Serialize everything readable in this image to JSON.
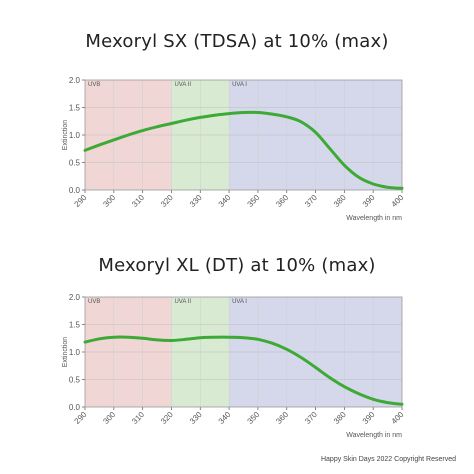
{
  "footer": "Happy Skin Days 2022 Copyright Reserved",
  "chart_data": [
    {
      "type": "line",
      "title": "Mexoryl SX (TDSA) at 10% (max)",
      "xlabel": "Wavelength in nm",
      "ylabel": "Extinction",
      "xlim": [
        290,
        400
      ],
      "ylim": [
        0,
        2.0
      ],
      "x_ticks": [
        "290",
        "300",
        "310",
        "320",
        "330",
        "340",
        "350",
        "360",
        "370",
        "380",
        "390",
        "400"
      ],
      "y_ticks": [
        "0.0",
        "0.5",
        "1.0",
        "1.5",
        "2.0"
      ],
      "grid": true,
      "bands": [
        {
          "label": "UVB",
          "from": 290,
          "to": 320,
          "color": "#f1d6d6"
        },
        {
          "label": "UVA II",
          "from": 320,
          "to": 340,
          "color": "#d9ead3"
        },
        {
          "label": "UVA I",
          "from": 340,
          "to": 400,
          "color": "#d5d7ea"
        }
      ],
      "line_color": "#3daa35",
      "series": [
        {
          "x": [
            290,
            295,
            300,
            305,
            310,
            315,
            320,
            325,
            330,
            335,
            340,
            345,
            350,
            355,
            360,
            365,
            370,
            375,
            380,
            385,
            390,
            395,
            400
          ],
          "values": [
            0.72,
            0.82,
            0.91,
            1.0,
            1.08,
            1.15,
            1.21,
            1.27,
            1.32,
            1.36,
            1.39,
            1.41,
            1.41,
            1.38,
            1.33,
            1.24,
            1.05,
            0.75,
            0.45,
            0.23,
            0.11,
            0.05,
            0.03
          ]
        }
      ]
    },
    {
      "type": "line",
      "title": "Mexoryl XL (DT) at 10% (max)",
      "xlabel": "Wavelength in nm",
      "ylabel": "Extinction",
      "xlim": [
        290,
        400
      ],
      "ylim": [
        0,
        2.0
      ],
      "x_ticks": [
        "290",
        "300",
        "310",
        "320",
        "330",
        "340",
        "350",
        "360",
        "370",
        "380",
        "390",
        "400"
      ],
      "y_ticks": [
        "0.0",
        "0.5",
        "1.0",
        "1.5",
        "2.0"
      ],
      "grid": true,
      "bands": [
        {
          "label": "UVB",
          "from": 290,
          "to": 320,
          "color": "#f1d6d6"
        },
        {
          "label": "UVA II",
          "from": 320,
          "to": 340,
          "color": "#d9ead3"
        },
        {
          "label": "UVA I",
          "from": 340,
          "to": 400,
          "color": "#d5d7ea"
        }
      ],
      "line_color": "#3daa35",
      "series": [
        {
          "x": [
            290,
            295,
            300,
            305,
            310,
            315,
            320,
            325,
            330,
            335,
            340,
            345,
            350,
            355,
            360,
            365,
            370,
            375,
            380,
            385,
            390,
            395,
            400
          ],
          "values": [
            1.18,
            1.24,
            1.27,
            1.27,
            1.25,
            1.22,
            1.21,
            1.23,
            1.26,
            1.27,
            1.27,
            1.26,
            1.23,
            1.16,
            1.05,
            0.9,
            0.72,
            0.53,
            0.37,
            0.24,
            0.14,
            0.08,
            0.05
          ]
        }
      ]
    }
  ]
}
